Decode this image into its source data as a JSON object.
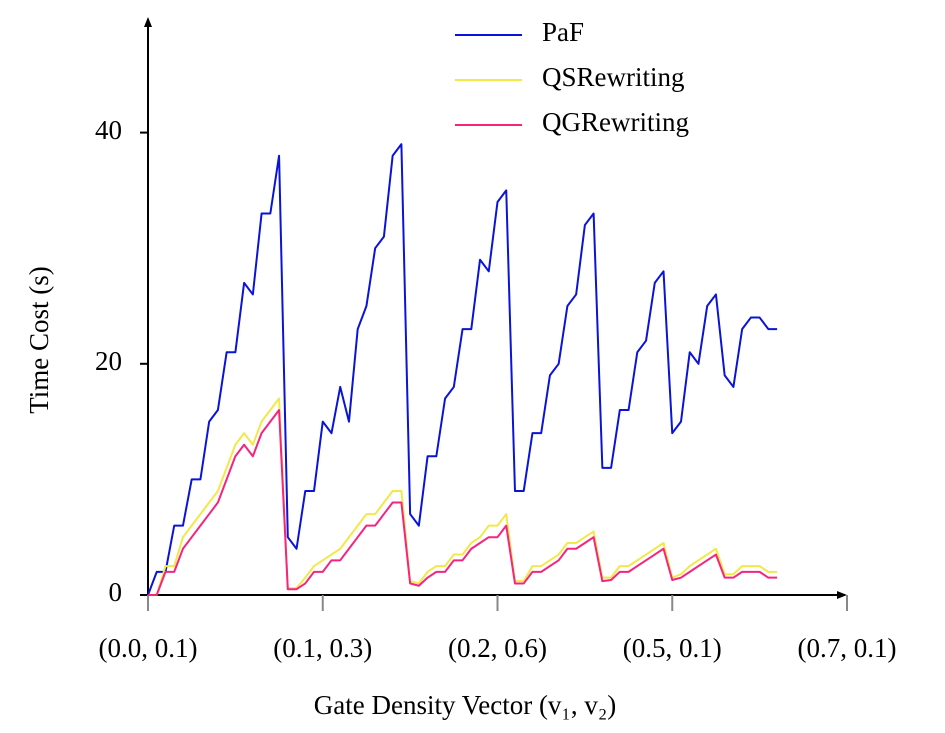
{
  "chart_data": {
    "type": "line",
    "x": [
      0,
      0.05,
      0.1,
      0.15,
      0.2,
      0.25,
      0.3,
      0.35,
      0.4,
      0.45,
      0.5,
      0.55,
      0.6,
      0.65,
      0.7,
      0.75,
      0.8,
      0.85,
      0.9,
      0.95,
      1.0,
      1.05,
      1.1,
      1.15,
      1.2,
      1.25,
      1.3,
      1.35,
      1.4,
      1.45,
      1.5,
      1.55,
      1.6,
      1.65,
      1.7,
      1.75,
      1.8,
      1.85,
      1.9,
      1.95,
      2.0,
      2.05,
      2.1,
      2.15,
      2.2,
      2.25,
      2.3,
      2.35,
      2.4,
      2.45,
      2.5,
      2.55,
      2.6,
      2.65,
      2.7,
      2.75,
      2.8,
      2.85,
      2.9,
      2.95,
      3.0,
      3.05,
      3.1,
      3.15,
      3.2,
      3.25,
      3.3,
      3.35,
      3.4,
      3.45,
      3.5,
      3.55,
      3.6
    ],
    "series": [
      {
        "name": "PaF",
        "color": "#0a14d8",
        "values": [
          0,
          2,
          2,
          6,
          6,
          10,
          10,
          15,
          16,
          21,
          21,
          27,
          26,
          33,
          33,
          38,
          5,
          4,
          9,
          9,
          15,
          14,
          18,
          15,
          23,
          25,
          30,
          31,
          38,
          39,
          7,
          6,
          12,
          12,
          17,
          18,
          23,
          23,
          29,
          28,
          34,
          35,
          9,
          9,
          14,
          14,
          19,
          20,
          25,
          26,
          32,
          33,
          11,
          11,
          16,
          16,
          21,
          22,
          27,
          28,
          14,
          15,
          21,
          20,
          25,
          26,
          19,
          18,
          23,
          24,
          24,
          23,
          23
        ]
      },
      {
        "name": "QSRewriting",
        "color": "#f2e84a",
        "values": [
          0,
          0,
          2.5,
          2.5,
          5,
          6,
          7,
          8,
          9,
          11,
          13,
          14,
          13,
          15,
          16,
          17,
          0.6,
          0.6,
          1.5,
          2.5,
          3,
          3.5,
          4,
          5,
          6,
          7,
          7,
          8,
          9,
          9,
          1.2,
          1,
          2,
          2.5,
          2.5,
          3.5,
          3.5,
          4.5,
          5,
          6,
          6,
          7,
          1.2,
          1.2,
          2.5,
          2.5,
          3,
          3.5,
          4.5,
          4.5,
          5,
          5.5,
          1.5,
          1.5,
          2.5,
          2.5,
          3,
          3.5,
          4,
          4.5,
          1.5,
          1.8,
          2.5,
          3,
          3.5,
          4,
          1.8,
          1.8,
          2.5,
          2.5,
          2.5,
          2,
          2
        ]
      },
      {
        "name": "QGRewriting",
        "color": "#f5247f",
        "values": [
          0,
          0,
          2,
          2,
          4,
          5,
          6,
          7,
          8,
          10,
          12,
          13,
          12,
          14,
          15,
          16,
          0.5,
          0.5,
          1,
          2,
          2,
          3,
          3,
          4,
          5,
          6,
          6,
          7,
          8,
          8,
          1,
          0.8,
          1.5,
          2,
          2,
          3,
          3,
          4,
          4.5,
          5,
          5,
          6,
          1,
          1,
          2,
          2,
          2.5,
          3,
          4,
          4,
          4.5,
          5,
          1.2,
          1.3,
          2,
          2,
          2.5,
          3,
          3.5,
          4,
          1.3,
          1.5,
          2,
          2.5,
          3,
          3.5,
          1.5,
          1.5,
          2,
          2,
          2,
          1.5,
          1.5
        ]
      }
    ],
    "xlabel": "Gate Density Vector (v₁, v₂)",
    "ylabel": "Time Cost (s)",
    "xlim": [
      0,
      4
    ],
    "ylim": [
      0,
      50
    ],
    "xticks": [
      {
        "value": 0,
        "label": "(0.0, 0.1)"
      },
      {
        "value": 1,
        "label": "(0.1, 0.3)"
      },
      {
        "value": 2,
        "label": "(0.2, 0.6)"
      },
      {
        "value": 3,
        "label": "(0.5, 0.1)"
      },
      {
        "value": 4,
        "label": "(0.7, 0.1)"
      }
    ],
    "yticks": [
      0,
      20,
      40
    ],
    "legend": "top"
  }
}
